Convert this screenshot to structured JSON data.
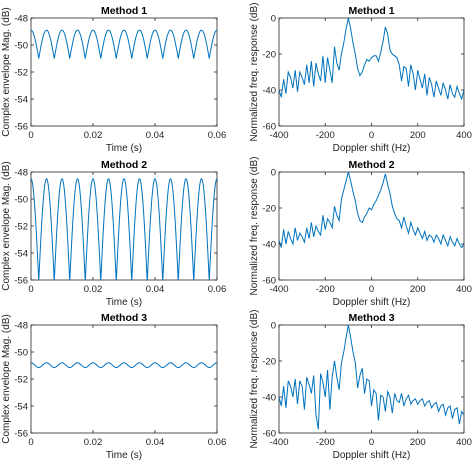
{
  "chart_data": [
    {
      "type": "line",
      "title": "Method 1",
      "xlabel": "Time (s)",
      "ylabel": "Complex envelope Mag. (dB)",
      "xlim": [
        0,
        0.06
      ],
      "ylim": [
        -56,
        -48
      ],
      "xticks": [
        0,
        0.02,
        0.04,
        0.06
      ],
      "xtick_labels": [
        "0",
        "0.02",
        "0.04",
        "0.06"
      ],
      "yticks": [
        -48,
        -50,
        -52,
        -54,
        -56
      ],
      "ytick_labels": [
        "-48",
        "-50",
        "-52",
        "-54",
        "-56"
      ],
      "waveform": {
        "kind": "rectified_cosine",
        "cycles": 12,
        "peak_db": -48.9,
        "trough_db": -51.0,
        "amp_ratio_at_trough": 0.78
      },
      "color": "#0072BD",
      "grid": false
    },
    {
      "type": "line",
      "title": "Method 1",
      "xlabel": "Doppler shift (Hz)",
      "ylabel": "Normalized freq. response (dB)",
      "xlim": [
        -400,
        400
      ],
      "ylim": [
        -60,
        0
      ],
      "xticks": [
        -400,
        -200,
        0,
        200,
        400
      ],
      "xtick_labels": [
        "-400",
        "-200",
        "0",
        "200",
        "400"
      ],
      "yticks": [
        0,
        -20,
        -40,
        -60
      ],
      "ytick_labels": [
        "0",
        "-20",
        "-40",
        "-60"
      ],
      "x": [
        -400,
        -390,
        -380,
        -370,
        -360,
        -350,
        -340,
        -330,
        -320,
        -310,
        -300,
        -290,
        -280,
        -270,
        -260,
        -250,
        -240,
        -230,
        -220,
        -210,
        -200,
        -190,
        -180,
        -170,
        -160,
        -150,
        -140,
        -130,
        -120,
        -110,
        -100,
        -90,
        -80,
        -70,
        -60,
        -50,
        -40,
        -30,
        -20,
        -10,
        0,
        10,
        20,
        30,
        40,
        50,
        60,
        70,
        80,
        90,
        100,
        110,
        120,
        130,
        140,
        150,
        160,
        170,
        180,
        190,
        200,
        210,
        220,
        230,
        240,
        250,
        260,
        270,
        280,
        290,
        300,
        310,
        320,
        330,
        340,
        350,
        360,
        370,
        380,
        390,
        400
      ],
      "y": [
        -40,
        -44,
        -34,
        -42,
        -30,
        -33,
        -39,
        -29,
        -41,
        -30,
        -33,
        -37,
        -26,
        -36,
        -24,
        -38,
        -25,
        -31,
        -35,
        -21,
        -36,
        -22,
        -29,
        -36,
        -16,
        -25,
        -29,
        -20,
        -14,
        -6,
        0,
        -6,
        -14,
        -20,
        -28,
        -32,
        -30,
        -26,
        -23,
        -24,
        -22,
        -21,
        -21,
        -24,
        -19,
        -13,
        -5,
        -9,
        -18,
        -20,
        -21,
        -22,
        -26,
        -35,
        -27,
        -28,
        -38,
        -26,
        -31,
        -40,
        -29,
        -34,
        -39,
        -31,
        -43,
        -33,
        -37,
        -44,
        -35,
        -39,
        -43,
        -36,
        -40,
        -45,
        -37,
        -42,
        -44,
        -38,
        -42,
        -45,
        -40
      ],
      "color": "#0072BD",
      "grid": false
    },
    {
      "type": "line",
      "title": "Method 2",
      "xlabel": "Time (s)",
      "ylabel": "Complex envelope Mag. (dB)",
      "xlim": [
        0,
        0.06
      ],
      "ylim": [
        -56,
        -48
      ],
      "xticks": [
        0,
        0.02,
        0.04,
        0.06
      ],
      "xtick_labels": [
        "0",
        "0.02",
        "0.04",
        "0.06"
      ],
      "yticks": [
        -48,
        -50,
        -52,
        -54,
        -56
      ],
      "ytick_labels": [
        "-48",
        "-50",
        "-52",
        "-54",
        "-56"
      ],
      "waveform": {
        "kind": "rectified_cosine",
        "cycles": 12,
        "peak_db": -48.5,
        "trough_db": -56.1,
        "amp_ratio_at_trough": 0.4
      },
      "color": "#0072BD",
      "grid": false
    },
    {
      "type": "line",
      "title": "Method 2",
      "xlabel": "Doppler shift (Hz)",
      "ylabel": "Normalized freq. response (dB)",
      "xlim": [
        -400,
        400
      ],
      "ylim": [
        -60,
        0
      ],
      "xticks": [
        -400,
        -200,
        0,
        200,
        400
      ],
      "xtick_labels": [
        "-400",
        "-200",
        "0",
        "200",
        "400"
      ],
      "yticks": [
        0,
        -20,
        -40,
        -60
      ],
      "ytick_labels": [
        "0",
        "-20",
        "-40",
        "-60"
      ],
      "x": [
        -400,
        -390,
        -380,
        -370,
        -360,
        -350,
        -340,
        -330,
        -320,
        -310,
        -300,
        -290,
        -280,
        -270,
        -260,
        -250,
        -240,
        -230,
        -220,
        -210,
        -200,
        -190,
        -180,
        -170,
        -160,
        -150,
        -140,
        -130,
        -120,
        -110,
        -100,
        -90,
        -80,
        -70,
        -60,
        -50,
        -40,
        -30,
        -20,
        -10,
        0,
        10,
        20,
        30,
        40,
        50,
        60,
        70,
        80,
        90,
        100,
        110,
        120,
        130,
        140,
        150,
        160,
        170,
        180,
        190,
        200,
        210,
        220,
        230,
        240,
        250,
        260,
        270,
        280,
        290,
        300,
        310,
        320,
        330,
        340,
        350,
        360,
        370,
        380,
        390,
        400
      ],
      "y": [
        -38,
        -42,
        -32,
        -40,
        -33,
        -37,
        -40,
        -31,
        -38,
        -34,
        -36,
        -39,
        -31,
        -37,
        -28,
        -36,
        -30,
        -33,
        -35,
        -24,
        -32,
        -26,
        -28,
        -31,
        -19,
        -24,
        -27,
        -15,
        -10,
        -5,
        0,
        -5,
        -11,
        -16,
        -23,
        -27,
        -28,
        -25,
        -23,
        -20,
        -21,
        -18,
        -16,
        -13,
        -10,
        -6,
        -1,
        -7,
        -12,
        -19,
        -23,
        -26,
        -27,
        -31,
        -25,
        -30,
        -34,
        -28,
        -32,
        -35,
        -31,
        -34,
        -37,
        -33,
        -38,
        -35,
        -36,
        -39,
        -35,
        -37,
        -40,
        -35,
        -38,
        -41,
        -36,
        -39,
        -41,
        -37,
        -40,
        -42,
        -40
      ],
      "color": "#0072BD",
      "grid": false
    },
    {
      "type": "line",
      "title": "Method 3",
      "xlabel": "Time (s)",
      "ylabel": "Complex envelope Mag. (dB)",
      "xlim": [
        0,
        0.06
      ],
      "ylim": [
        -56,
        -48
      ],
      "xticks": [
        0,
        0.02,
        0.04,
        0.06
      ],
      "xtick_labels": [
        "0",
        "0.02",
        "0.04",
        "0.06"
      ],
      "yticks": [
        -48,
        -50,
        -52,
        -54,
        -56
      ],
      "ytick_labels": [
        "-48",
        "-50",
        "-52",
        "-54",
        "-56"
      ],
      "waveform": {
        "kind": "cosine",
        "cycles": 12,
        "peak_db": -50.8,
        "trough_db": -51.15
      },
      "color": "#0072BD",
      "grid": false
    },
    {
      "type": "line",
      "title": "Method 3",
      "xlabel": "Doppler shift (Hz)",
      "ylabel": "Normalized freq. response (dB)",
      "xlim": [
        -400,
        400
      ],
      "ylim": [
        -60,
        0
      ],
      "xticks": [
        -400,
        -200,
        0,
        200,
        400
      ],
      "xtick_labels": [
        "-400",
        "-200",
        "0",
        "200",
        "400"
      ],
      "yticks": [
        0,
        -20,
        -40,
        -60
      ],
      "ytick_labels": [
        "0",
        "-20",
        "-40",
        "-60"
      ],
      "x": [
        -400,
        -390,
        -380,
        -370,
        -360,
        -350,
        -340,
        -330,
        -320,
        -310,
        -300,
        -290,
        -280,
        -270,
        -260,
        -250,
        -240,
        -230,
        -220,
        -210,
        -200,
        -190,
        -180,
        -170,
        -160,
        -150,
        -140,
        -130,
        -120,
        -110,
        -100,
        -90,
        -80,
        -70,
        -60,
        -50,
        -40,
        -30,
        -20,
        -10,
        0,
        10,
        20,
        30,
        40,
        50,
        60,
        70,
        80,
        90,
        100,
        110,
        120,
        130,
        140,
        150,
        160,
        170,
        180,
        190,
        200,
        210,
        220,
        230,
        240,
        250,
        260,
        270,
        280,
        290,
        300,
        310,
        320,
        330,
        340,
        350,
        360,
        370,
        380,
        390,
        400
      ],
      "y": [
        -40,
        -45,
        -34,
        -46,
        -31,
        -34,
        -40,
        -30,
        -44,
        -31,
        -34,
        -47,
        -29,
        -33,
        -38,
        -28,
        -50,
        -58,
        -27,
        -32,
        -40,
        -25,
        -47,
        -29,
        -20,
        -29,
        -36,
        -21,
        -15,
        -7,
        0,
        -7,
        -15,
        -21,
        -35,
        -28,
        -24,
        -38,
        -30,
        -31,
        -45,
        -36,
        -38,
        -53,
        -39,
        -40,
        -48,
        -37,
        -40,
        -49,
        -38,
        -42,
        -43,
        -38,
        -45,
        -41,
        -39,
        -44,
        -42,
        -41,
        -44,
        -42,
        -41,
        -45,
        -43,
        -42,
        -46,
        -44,
        -43,
        -48,
        -45,
        -44,
        -50,
        -46,
        -45,
        -52,
        -47,
        -46,
        -55,
        -48,
        -50
      ],
      "color": "#0072BD",
      "grid": false
    }
  ]
}
